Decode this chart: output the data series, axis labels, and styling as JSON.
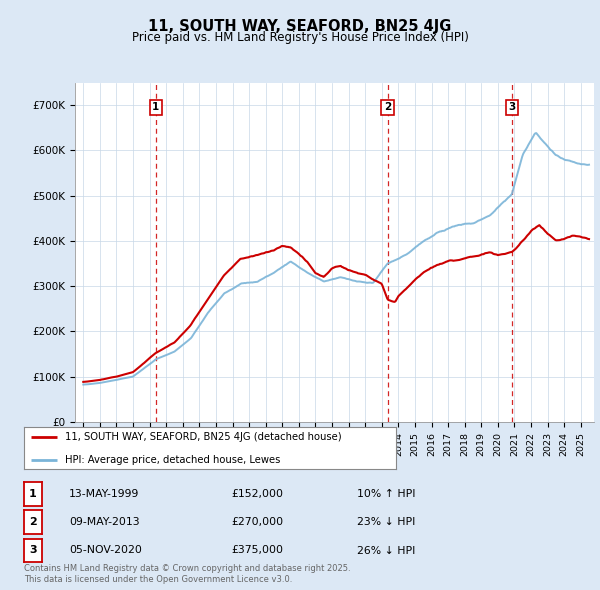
{
  "title": "11, SOUTH WAY, SEAFORD, BN25 4JG",
  "subtitle": "Price paid vs. HM Land Registry's House Price Index (HPI)",
  "ylabel_ticks": [
    "£0",
    "£100K",
    "£200K",
    "£300K",
    "£400K",
    "£500K",
    "£600K",
    "£700K"
  ],
  "ytick_vals": [
    0,
    100000,
    200000,
    300000,
    400000,
    500000,
    600000,
    700000
  ],
  "ylim": [
    0,
    750000
  ],
  "background_color": "#dce8f5",
  "plot_bg_color": "#ffffff",
  "grid_color": "#c8d8e8",
  "red_line_color": "#cc0000",
  "blue_line_color": "#7ab4d8",
  "vline_color": "#cc0000",
  "sale_markers": [
    {
      "date_x": 1999.37,
      "price": 152000,
      "label": "1"
    },
    {
      "date_x": 2013.36,
      "price": 270000,
      "label": "2"
    },
    {
      "date_x": 2020.84,
      "price": 375000,
      "label": "3"
    }
  ],
  "legend_entries": [
    "11, SOUTH WAY, SEAFORD, BN25 4JG (detached house)",
    "HPI: Average price, detached house, Lewes"
  ],
  "table_rows": [
    {
      "num": "1",
      "date": "13-MAY-1999",
      "price": "£152,000",
      "hpi": "10% ↑ HPI"
    },
    {
      "num": "2",
      "date": "09-MAY-2013",
      "price": "£270,000",
      "hpi": "23% ↓ HPI"
    },
    {
      "num": "3",
      "date": "05-NOV-2020",
      "price": "£375,000",
      "hpi": "26% ↓ HPI"
    }
  ],
  "footnote1": "Contains HM Land Registry data © Crown copyright and database right 2025.",
  "footnote2": "This data is licensed under the Open Government Licence v3.0.",
  "xmin": 1994.5,
  "xmax": 2025.8,
  "hpi_keypoints": [
    [
      1995.0,
      82000
    ],
    [
      1996.0,
      86000
    ],
    [
      1997.0,
      93000
    ],
    [
      1998.0,
      100000
    ],
    [
      1999.37,
      138000
    ],
    [
      2000.5,
      155000
    ],
    [
      2001.5,
      185000
    ],
    [
      2002.5,
      240000
    ],
    [
      2003.5,
      285000
    ],
    [
      2004.5,
      305000
    ],
    [
      2005.5,
      310000
    ],
    [
      2006.5,
      330000
    ],
    [
      2007.5,
      355000
    ],
    [
      2008.5,
      330000
    ],
    [
      2009.5,
      310000
    ],
    [
      2010.5,
      320000
    ],
    [
      2011.5,
      310000
    ],
    [
      2012.5,
      308000
    ],
    [
      2013.36,
      350000
    ],
    [
      2014.5,
      370000
    ],
    [
      2015.5,
      400000
    ],
    [
      2016.5,
      420000
    ],
    [
      2017.5,
      435000
    ],
    [
      2018.5,
      440000
    ],
    [
      2019.5,
      455000
    ],
    [
      2020.84,
      505000
    ],
    [
      2021.5,
      590000
    ],
    [
      2022.3,
      640000
    ],
    [
      2023.0,
      610000
    ],
    [
      2023.5,
      590000
    ],
    [
      2024.0,
      580000
    ],
    [
      2024.5,
      575000
    ],
    [
      2025.0,
      570000
    ],
    [
      2025.5,
      568000
    ]
  ],
  "prop_keypoints": [
    [
      1995.0,
      88000
    ],
    [
      1996.0,
      93000
    ],
    [
      1997.0,
      100000
    ],
    [
      1998.0,
      110000
    ],
    [
      1999.37,
      152000
    ],
    [
      2000.5,
      175000
    ],
    [
      2001.5,
      215000
    ],
    [
      2002.5,
      270000
    ],
    [
      2003.5,
      325000
    ],
    [
      2004.5,
      360000
    ],
    [
      2005.5,
      370000
    ],
    [
      2006.5,
      380000
    ],
    [
      2007.0,
      390000
    ],
    [
      2007.5,
      385000
    ],
    [
      2008.0,
      370000
    ],
    [
      2008.5,
      355000
    ],
    [
      2009.0,
      330000
    ],
    [
      2009.5,
      320000
    ],
    [
      2010.0,
      340000
    ],
    [
      2010.5,
      345000
    ],
    [
      2011.0,
      335000
    ],
    [
      2011.5,
      330000
    ],
    [
      2012.0,
      325000
    ],
    [
      2012.5,
      315000
    ],
    [
      2013.0,
      305000
    ],
    [
      2013.36,
      270000
    ],
    [
      2013.8,
      265000
    ],
    [
      2014.0,
      278000
    ],
    [
      2014.5,
      295000
    ],
    [
      2015.0,
      315000
    ],
    [
      2015.5,
      330000
    ],
    [
      2016.0,
      340000
    ],
    [
      2016.5,
      348000
    ],
    [
      2017.0,
      355000
    ],
    [
      2017.5,
      358000
    ],
    [
      2018.0,
      362000
    ],
    [
      2018.5,
      365000
    ],
    [
      2019.0,
      370000
    ],
    [
      2019.5,
      375000
    ],
    [
      2020.0,
      368000
    ],
    [
      2020.84,
      375000
    ],
    [
      2021.0,
      380000
    ],
    [
      2021.5,
      400000
    ],
    [
      2022.0,
      420000
    ],
    [
      2022.5,
      435000
    ],
    [
      2023.0,
      415000
    ],
    [
      2023.5,
      400000
    ],
    [
      2024.0,
      405000
    ],
    [
      2024.5,
      410000
    ],
    [
      2025.0,
      408000
    ],
    [
      2025.5,
      405000
    ]
  ]
}
